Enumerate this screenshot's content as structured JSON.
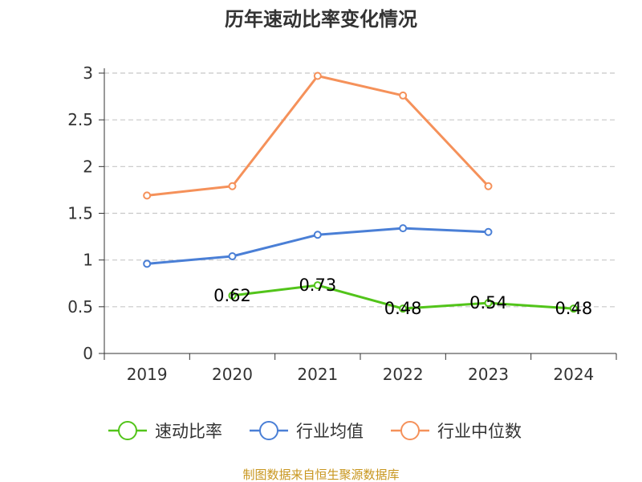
{
  "chart_data": {
    "type": "line",
    "title": "历年速动比率变化情况",
    "categories": [
      "2019",
      "2020",
      "2021",
      "2022",
      "2023",
      "2024"
    ],
    "ylim": [
      0,
      3
    ],
    "yticks": [
      "0",
      "0.5",
      "1",
      "1.5",
      "2",
      "2.5",
      "3"
    ],
    "grid": true,
    "legend_position": "bottom",
    "series": [
      {
        "name": "速动比率",
        "color": "#52c41a",
        "values": [
          null,
          0.62,
          0.73,
          0.48,
          0.54,
          0.48
        ],
        "labels": [
          "",
          "0.62",
          "0.73",
          "0.48",
          "0.54",
          "0.48"
        ]
      },
      {
        "name": "行业均值",
        "color": "#4a7fd6",
        "values": [
          0.96,
          1.04,
          1.27,
          1.34,
          1.3,
          null
        ]
      },
      {
        "name": "行业中位数",
        "color": "#f5915a",
        "values": [
          1.69,
          1.79,
          2.97,
          2.76,
          1.79,
          null
        ]
      }
    ]
  },
  "footer": {
    "source": "制图数据来自恒生聚源数据库"
  }
}
